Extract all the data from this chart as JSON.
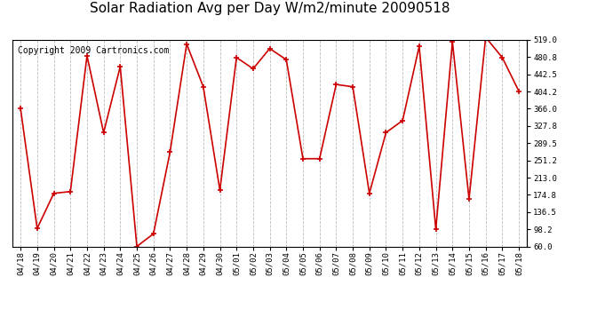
{
  "title": "Solar Radiation Avg per Day W/m2/minute 20090518",
  "copyright": "Copyright 2009 Cartronics.com",
  "dates": [
    "04/18",
    "04/19",
    "04/20",
    "04/21",
    "04/22",
    "04/23",
    "04/24",
    "04/25",
    "04/26",
    "04/27",
    "04/28",
    "04/29",
    "04/30",
    "05/01",
    "05/02",
    "05/03",
    "05/04",
    "05/05",
    "05/06",
    "05/07",
    "05/08",
    "05/09",
    "05/10",
    "05/11",
    "05/12",
    "05/13",
    "05/14",
    "05/15",
    "05/16",
    "05/17",
    "05/18"
  ],
  "values": [
    366,
    100,
    178,
    182,
    484,
    313,
    460,
    60,
    88,
    270,
    510,
    415,
    185,
    480,
    455,
    500,
    475,
    255,
    255,
    420,
    415,
    178,
    313,
    340,
    505,
    98,
    515,
    165,
    525,
    480,
    405
  ],
  "line_color": "#cc0000",
  "marker": "+",
  "marker_color": "#cc0000",
  "bg_color": "#ffffff",
  "plot_bg": "#ffffff",
  "grid_color": "#bbbbbb",
  "ylim": [
    60,
    519
  ],
  "yticks": [
    60.0,
    98.2,
    136.5,
    174.8,
    213.0,
    251.2,
    289.5,
    327.8,
    366.0,
    404.2,
    442.5,
    480.8,
    519.0
  ],
  "title_fontsize": 11,
  "copyright_fontsize": 7
}
